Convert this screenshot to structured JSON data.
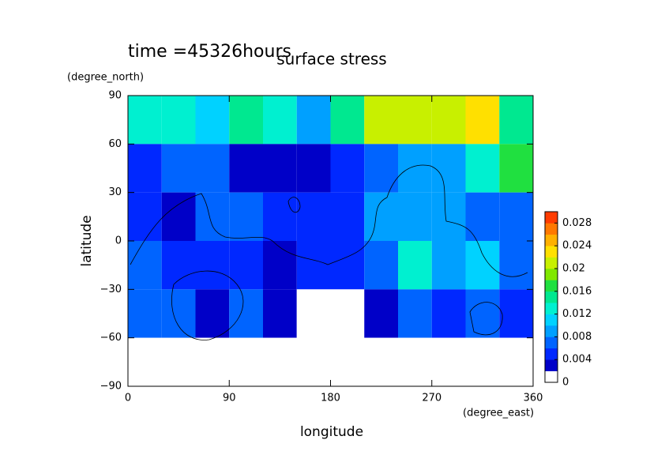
{
  "chart_data": {
    "type": "contour",
    "title": "surface stress",
    "subtitle": "time =45326hours",
    "x_label": "longitude",
    "x_unit": "(degree_east)",
    "y_label": "latitude",
    "y_unit": "(degree_north)",
    "xlim": [
      0,
      360
    ],
    "ylim": [
      -90,
      90
    ],
    "xticks": [
      0,
      90,
      180,
      270,
      360
    ],
    "yticks": [
      {
        "value": -90,
        "label": "−90"
      },
      {
        "value": -60,
        "label": "−60"
      },
      {
        "value": -30,
        "label": "−30"
      },
      0,
      30,
      60,
      90
    ],
    "x": [
      15,
      45,
      75,
      105,
      135,
      165,
      195,
      225,
      255,
      285,
      315,
      345
    ],
    "y": [
      75,
      45,
      15,
      -15,
      -45,
      -75
    ],
    "z": [
      [
        0.012,
        0.012,
        0.01,
        0.014,
        0.012,
        0.008,
        0.014,
        0.02,
        0.02,
        0.02,
        0.022,
        0.014
      ],
      [
        0.004,
        0.006,
        0.006,
        0.003,
        0.002,
        0.002,
        0.004,
        0.006,
        0.008,
        0.008,
        0.012,
        0.016
      ],
      [
        0.004,
        0.002,
        0.006,
        0.006,
        0.004,
        0.004,
        0.004,
        0.008,
        0.008,
        0.008,
        0.006,
        0.006
      ],
      [
        0.006,
        0.004,
        0.004,
        0.004,
        0.002,
        0.004,
        0.004,
        0.006,
        0.012,
        0.008,
        0.01,
        0.006
      ],
      [
        0.006,
        0.006,
        0.002,
        0.006,
        0.002,
        0,
        0,
        0.002,
        0.006,
        0.004,
        0.006,
        0.004
      ],
      [
        0,
        0,
        0,
        0,
        0,
        0,
        0,
        0,
        0,
        0,
        0,
        0
      ]
    ],
    "clim": [
      0,
      0.03
    ],
    "cticks": [
      0,
      0.004,
      0.008,
      0.012,
      0.016,
      0.02,
      0.024,
      0.028
    ],
    "colors": [
      "#ffffff",
      "#0000c8",
      "#0028ff",
      "#0064ff",
      "#00a0ff",
      "#00d2ff",
      "#00f0d0",
      "#00e890",
      "#20e040",
      "#80e800",
      "#c8f000",
      "#ffe000",
      "#ffb000",
      "#ff7800",
      "#ff3c00"
    ]
  }
}
